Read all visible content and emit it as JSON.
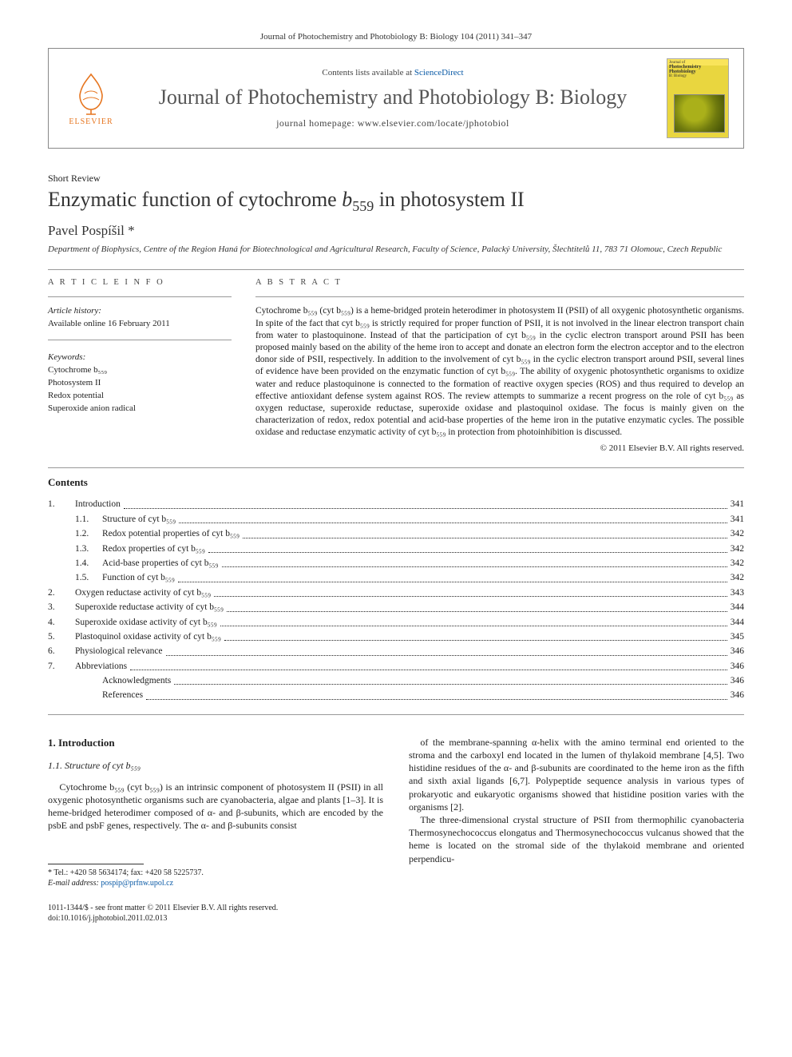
{
  "header": {
    "running_head": "Journal of Photochemistry and Photobiology B: Biology 104 (2011) 341–347",
    "contents_line_pre": "Contents lists available at ",
    "contents_line_link": "ScienceDirect",
    "journal_title": "Journal of Photochemistry and Photobiology B: Biology",
    "homepage_label": "journal homepage: www.elsevier.com/locate/jphotobiol",
    "elsevier_label": "ELSEVIER",
    "cover_label_top": "Journal of",
    "cover_label_mid": "Photochemistry\nPhotobiology",
    "cover_label_bottom": "B: Biology"
  },
  "article": {
    "type": "Short Review",
    "title_pre": "Enzymatic function of cytochrome ",
    "title_cyt": "b",
    "title_cyt_sub": "559",
    "title_post": " in photosystem II",
    "author": "Pavel Pospíšil",
    "author_mark": "*",
    "affiliation": "Department of Biophysics, Centre of the Region Haná for Biotechnological and Agricultural Research, Faculty of Science, Palacký University, Šlechtitelů 11, 783 71 Olomouc, Czech Republic"
  },
  "article_info": {
    "head": "A R T I C L E   I N F O",
    "history_head": "Article history:",
    "history_line": "Available online 16 February 2011",
    "keywords_head": "Keywords:",
    "keywords": [
      "Cytochrome b₅₅₉",
      "Photosystem II",
      "Redox potential",
      "Superoxide anion radical"
    ]
  },
  "abstract": {
    "head": "A B S T R A C T",
    "text": "Cytochrome b₅₅₉ (cyt b₅₅₉) is a heme-bridged protein heterodimer in photosystem II (PSII) of all oxygenic photosynthetic organisms. In spite of the fact that cyt b₅₅₉ is strictly required for proper function of PSII, it is not involved in the linear electron transport chain from water to plastoquinone. Instead of that the participation of cyt b₅₅₉ in the cyclic electron transport around PSII has been proposed mainly based on the ability of the heme iron to accept and donate an electron form the electron acceptor and to the electron donor side of PSII, respectively. In addition to the involvement of cyt b₅₅₉ in the cyclic electron transport around PSII, several lines of evidence have been provided on the enzymatic function of cyt b₅₅₉. The ability of oxygenic photosynthetic organisms to oxidize water and reduce plastoquinone is connected to the formation of reactive oxygen species (ROS) and thus required to develop an effective antioxidant defense system against ROS. The review attempts to summarize a recent progress on the role of cyt b₅₅₉ as oxygen reductase, superoxide reductase, superoxide oxidase and plastoquinol oxidase. The focus is mainly given on the characterization of redox, redox potential and acid-base properties of the heme iron in the putative enzymatic cycles. The possible oxidase and reductase enzymatic activity of cyt b₅₅₉ in protection from photoinhibition is discussed.",
    "copyright": "© 2011 Elsevier B.V. All rights reserved."
  },
  "contents": {
    "head": "Contents",
    "items": [
      {
        "num": "1.",
        "label": "Introduction",
        "page": "341",
        "sub": false
      },
      {
        "num": "1.1.",
        "label": "Structure of cyt b₅₅₉",
        "page": "341",
        "sub": true
      },
      {
        "num": "1.2.",
        "label": "Redox potential properties of cyt b₅₅₉",
        "page": "342",
        "sub": true
      },
      {
        "num": "1.3.",
        "label": "Redox properties of cyt b₅₅₉",
        "page": "342",
        "sub": true
      },
      {
        "num": "1.4.",
        "label": "Acid-base properties of cyt b₅₅₉",
        "page": "342",
        "sub": true
      },
      {
        "num": "1.5.",
        "label": "Function of cyt b₅₅₉",
        "page": "342",
        "sub": true
      },
      {
        "num": "2.",
        "label": "Oxygen reductase activity of cyt b₅₅₉",
        "page": "343",
        "sub": false
      },
      {
        "num": "3.",
        "label": "Superoxide reductase activity of cyt b₅₅₉",
        "page": "344",
        "sub": false
      },
      {
        "num": "4.",
        "label": "Superoxide oxidase activity of cyt b₅₅₉",
        "page": "344",
        "sub": false
      },
      {
        "num": "5.",
        "label": "Plastoquinol oxidase activity of cyt b₅₅₉",
        "page": "345",
        "sub": false
      },
      {
        "num": "6.",
        "label": "Physiological relevance",
        "page": "346",
        "sub": false
      },
      {
        "num": "7.",
        "label": "Abbreviations",
        "page": "346",
        "sub": false
      },
      {
        "num": "",
        "label": "Acknowledgments",
        "page": "346",
        "sub": true
      },
      {
        "num": "",
        "label": "References",
        "page": "346",
        "sub": true
      }
    ]
  },
  "body": {
    "h2": "1. Introduction",
    "h3": "1.1. Structure of cyt b₅₅₉",
    "p1": "Cytochrome b₅₅₉ (cyt b₅₅₉) is an intrinsic component of photosystem II (PSII) in all oxygenic photosynthetic organisms such are cyanobacteria, algae and plants [1–3]. It is heme-bridged heterodimer composed of α- and β-subunits, which are encoded by the psbE and psbF genes, respectively. The α- and β-subunits consist",
    "p2": "of the membrane-spanning α-helix with the amino terminal end oriented to the stroma and the carboxyl end located in the lumen of thylakoid membrane [4,5]. Two histidine residues of the α- and β-subunits are coordinated to the heme iron as the fifth and sixth axial ligands [6,7]. Polypeptide sequence analysis in various types of prokaryotic and eukaryotic organisms showed that histidine position varies with the organisms [2].",
    "p3": "The three-dimensional crystal structure of PSII from thermophilic cyanobacteria Thermosynechococcus elongatus and Thermosynechococcus vulcanus showed that the heme is located on the stromal side of the thylakoid membrane and oriented perpendicu-"
  },
  "footnote": {
    "tel": "* Tel.: +420 58 5634174; fax: +420 58 5225737.",
    "email_label": "E-mail address:",
    "email": "pospip@prfnw.upol.cz"
  },
  "footer": {
    "line1": "1011-1344/$ - see front matter © 2011 Elsevier B.V. All rights reserved.",
    "line2": "doi:10.1016/j.jphotobiol.2011.02.013"
  },
  "colors": {
    "link": "#0a5aa6",
    "elsevier_orange": "#e6751f",
    "rule": "#999999",
    "text": "#212121"
  }
}
